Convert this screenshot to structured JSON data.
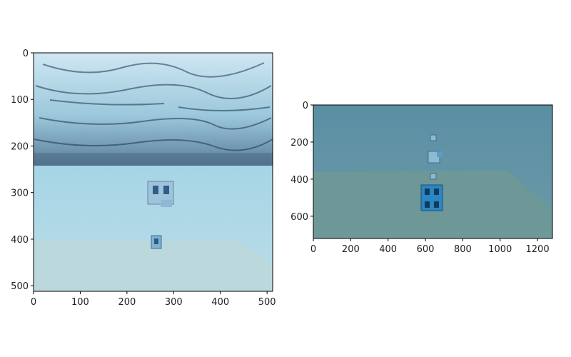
{
  "chart_data": [
    {
      "type": "image",
      "description_colors": {
        "sky_top": "#d8eef6",
        "sky_dark": "#1f3550",
        "ground": "#a9d3e3",
        "floor": "#b6d2d6"
      },
      "xlim": [
        0,
        512
      ],
      "ylim": [
        512,
        0
      ],
      "x_ticks": [
        0,
        100,
        200,
        300,
        400,
        500
      ],
      "y_ticks": [
        0,
        100,
        200,
        300,
        400,
        500
      ],
      "grid": false
    },
    {
      "type": "image",
      "description_colors": {
        "water": "#5f93a7",
        "floor": "#6f9595",
        "object": "#2a86c4"
      },
      "xlim": [
        0,
        1280
      ],
      "ylim": [
        720,
        0
      ],
      "x_ticks": [
        0,
        200,
        400,
        600,
        800,
        1000,
        1200
      ],
      "y_ticks": [
        0,
        200,
        400,
        600
      ],
      "grid": false
    }
  ]
}
